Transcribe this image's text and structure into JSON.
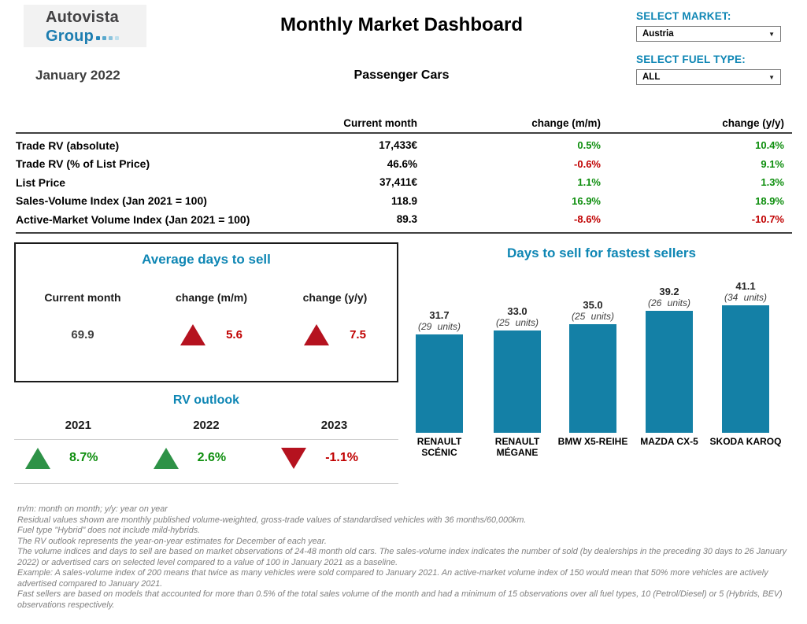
{
  "colors": {
    "accent": "#0E86B4",
    "bar": "#1480A6",
    "positive": "#0E8E0E",
    "negative": "#C00000",
    "arrow_red": "#B5121F",
    "arrow_green": "#2E9247"
  },
  "header": {
    "logo_line1": "Autovista",
    "logo_line2": "Group",
    "title": "Monthly Market Dashboard",
    "subtitle": "Passenger Cars",
    "period": "January 2022",
    "market_label": "SELECT MARKET:",
    "market_value": "Austria",
    "fuel_label": "SELECT FUEL TYPE:",
    "fuel_value": "ALL"
  },
  "summary_table": {
    "col_current": "Current month",
    "col_mm": "change (m/m)",
    "col_yy": "change (y/y)",
    "rows": [
      {
        "label": "Trade RV (absolute)",
        "current": "17,433€",
        "mm": "0.5%",
        "mm_sentiment": "positive",
        "yy": "10.4%",
        "yy_sentiment": "positive"
      },
      {
        "label": "Trade RV (% of List Price)",
        "current": "46.6%",
        "mm": "-0.6%",
        "mm_sentiment": "negative",
        "yy": "9.1%",
        "yy_sentiment": "positive"
      },
      {
        "label": "List Price",
        "current": "37,411€",
        "mm": "1.1%",
        "mm_sentiment": "positive",
        "yy": "1.3%",
        "yy_sentiment": "positive"
      },
      {
        "label": "Sales-Volume Index (Jan 2021 = 100)",
        "current": "118.9",
        "mm": "16.9%",
        "mm_sentiment": "positive",
        "yy": "18.9%",
        "yy_sentiment": "positive"
      },
      {
        "label": "Active-Market Volume Index (Jan 2021 = 100)",
        "current": "89.3",
        "mm": "-8.6%",
        "mm_sentiment": "negative",
        "yy": "-10.7%",
        "yy_sentiment": "negative"
      }
    ]
  },
  "avg_days": {
    "title": "Average days to sell",
    "col_current": "Current month",
    "col_mm": "change (m/m)",
    "col_yy": "change (y/y)",
    "current": "69.9",
    "mm": {
      "value": "5.6",
      "direction": "up",
      "sentiment": "negative"
    },
    "yy": {
      "value": "7.5",
      "direction": "up",
      "sentiment": "negative"
    }
  },
  "rv_outlook": {
    "title": "RV outlook",
    "items": [
      {
        "year": "2021",
        "value": "8.7%",
        "direction": "up",
        "sentiment": "positive"
      },
      {
        "year": "2022",
        "value": "2.6%",
        "direction": "up",
        "sentiment": "positive"
      },
      {
        "year": "2023",
        "value": "-1.1%",
        "direction": "down",
        "sentiment": "negative"
      }
    ]
  },
  "chart_data": {
    "type": "bar",
    "title": "Days to sell for fastest sellers",
    "categories": [
      "RENAULT SCÉNIC",
      "RENAULT MÉGANE",
      "BMW X5-REIHE",
      "MAZDA CX-5",
      "SKODA KAROQ"
    ],
    "values": [
      31.7,
      33.0,
      35.0,
      39.2,
      41.1
    ],
    "units": [
      29,
      25,
      25,
      26,
      34
    ],
    "value_labels": [
      "31.7",
      "33.0",
      "35.0",
      "39.2",
      "41.1"
    ],
    "unit_labels": [
      "(29 units)",
      "(25 units)",
      "(25 units)",
      "(26 units)",
      "(34 units)"
    ],
    "xlabel": "",
    "ylabel": "days to sell",
    "ylim": [
      0,
      50
    ],
    "grid": false,
    "legend": false,
    "axes_hidden": true,
    "bar_color": "#1480A6"
  },
  "footnotes": [
    "m/m: month on month; y/y: year on year",
    "Residual values shown are monthly published volume-weighted, gross-trade values of standardised vehicles with 36 months/60,000km.",
    "Fuel type \"Hybrid\" does not include mild-hybrids.",
    "The RV outlook represents the year-on-year estimates for December of each year.",
    "The volume indices and days to sell are based on market observations of 24-48 month old cars. The sales-volume index indicates the number of sold (by dealerships in the preceding 30 days to 26 January 2022) or advertised cars on selected level compared to a value of 100 in January 2021 as a baseline.",
    "Example: A sales-volume index of 200 means that twice as many vehicles were sold compared to January 2021. An active-market volume index of 150 would mean that 50% more vehicles are actively advertised compared to January 2021.",
    "Fast sellers are based on models that accounted for more than 0.5% of the total sales volume of the month and had a minimum of 15 observations over all fuel types, 10 (Petrol/Diesel) or 5 (Hybrids, BEV) observations respectively."
  ]
}
